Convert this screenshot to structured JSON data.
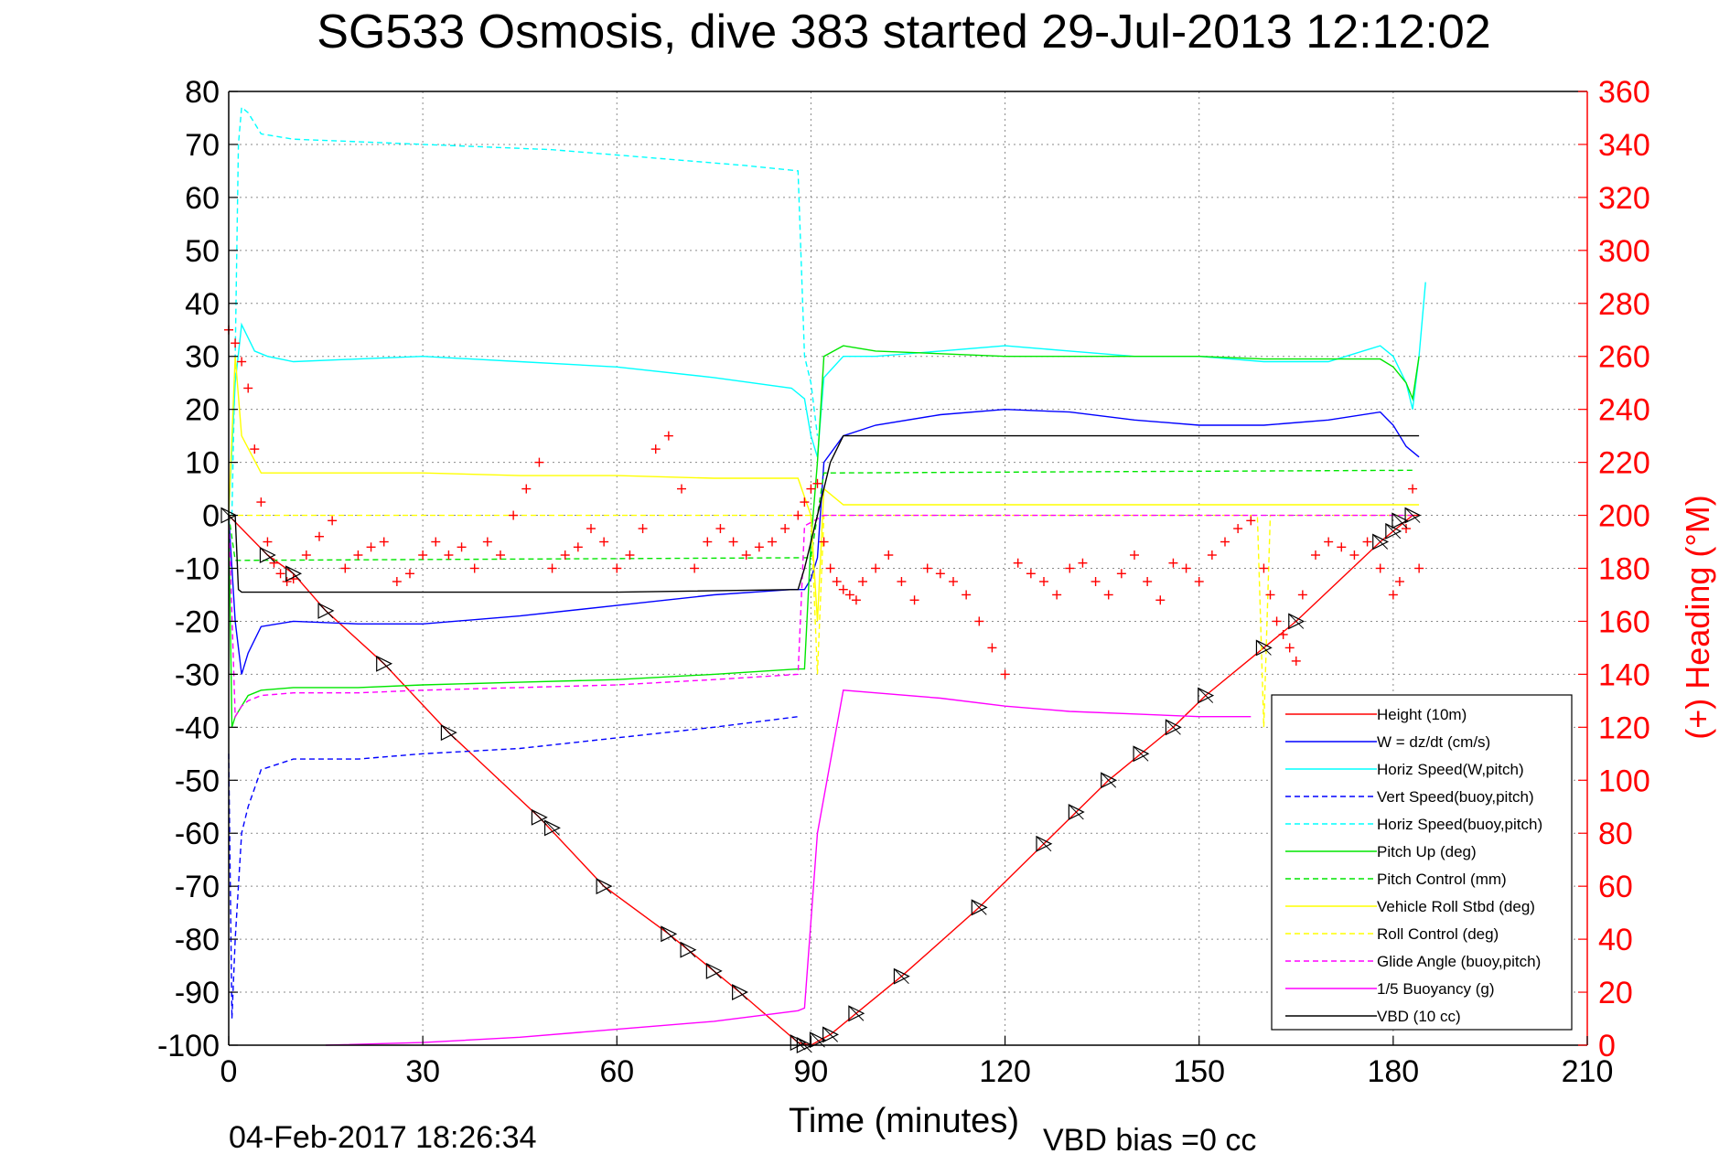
{
  "chart_data": {
    "type": "line",
    "title": "SG533 Osmosis, dive 383 started 29-Jul-2013 12:12:02",
    "xlabel": "Time (minutes)",
    "ylabel": "",
    "y2label": "(+) Heading (°M)",
    "timestamp": "04-Feb-2017 18:26:34",
    "vbd_bias": "VBD bias =0 cc",
    "xlim": [
      0,
      210
    ],
    "ylim": [
      -100,
      80
    ],
    "y2lim": [
      0,
      360
    ],
    "xticks": [
      0,
      30,
      60,
      90,
      120,
      150,
      180,
      210
    ],
    "yticks": [
      -100,
      -90,
      -80,
      -70,
      -60,
      -50,
      -40,
      -30,
      -20,
      -10,
      0,
      10,
      20,
      30,
      40,
      50,
      60,
      70,
      80
    ],
    "y2ticks": [
      0,
      20,
      40,
      60,
      80,
      100,
      120,
      140,
      160,
      180,
      200,
      220,
      240,
      260,
      280,
      300,
      320,
      340,
      360
    ],
    "grid": true,
    "legend_position": "bottom-right",
    "colors": {
      "red": "#ff0000",
      "blue": "#0000ff",
      "cyan": "#00ffff",
      "green": "#00e600",
      "yellow": "#ffff00",
      "magenta": "#ff00ff",
      "black": "#000000"
    },
    "series": [
      {
        "name": "Height (10m)",
        "color": "#ff0000",
        "style": "solid",
        "x": [
          0,
          6,
          10,
          15,
          24,
          34,
          48,
          58,
          68,
          75,
          79,
          88,
          90,
          93,
          97,
          104,
          116,
          126,
          136,
          146,
          151,
          160,
          165,
          178,
          183,
          184
        ],
        "y": [
          0,
          -7.5,
          -11,
          -18,
          -28,
          -41,
          -57,
          -70,
          -79,
          -86,
          -90,
          -99.5,
          -100,
          -98,
          -94,
          -87,
          -74,
          -62,
          -50,
          -40,
          -34,
          -25,
          -20,
          -5,
          0,
          0
        ]
      },
      {
        "name": "W = dz/dt (cm/s)",
        "color": "#0000ff",
        "style": "solid",
        "x": [
          0,
          1,
          2,
          3,
          5,
          10,
          20,
          30,
          45,
          60,
          75,
          87,
          89,
          90,
          91,
          92,
          95,
          100,
          110,
          120,
          130,
          140,
          150,
          160,
          170,
          178,
          180,
          182,
          184
        ],
        "y": [
          0,
          -20,
          -30,
          -26,
          -21,
          -20,
          -20.5,
          -20.5,
          -19,
          -17,
          -15,
          -14,
          -14,
          -12,
          -8,
          10,
          15,
          17,
          19,
          20,
          19.5,
          18,
          17,
          17,
          18,
          19.5,
          17,
          13,
          11
        ]
      },
      {
        "name": "Horiz Speed(W,pitch)",
        "color": "#00ffff",
        "style": "solid",
        "x": [
          0,
          1,
          2,
          4,
          6,
          10,
          20,
          30,
          45,
          60,
          75,
          87,
          89,
          90,
          91,
          92,
          95,
          100,
          110,
          120,
          130,
          140,
          150,
          160,
          170,
          178,
          180,
          182,
          183,
          184,
          185
        ],
        "y": [
          0,
          25,
          36,
          31,
          30,
          29,
          29.5,
          30,
          29,
          28,
          26,
          24,
          22,
          15,
          11,
          26,
          30,
          30,
          31,
          32,
          31,
          30,
          30,
          29,
          29,
          32,
          30,
          25,
          20,
          30,
          44
        ]
      },
      {
        "name": "Vert Speed(buoy,pitch)",
        "color": "#0000ff",
        "style": "dashed",
        "x": [
          0,
          0.5,
          1,
          2,
          3,
          5,
          10,
          20,
          30,
          45,
          60,
          75,
          88
        ],
        "y": [
          -45,
          -95,
          -80,
          -60,
          -55,
          -48,
          -46,
          -46,
          -45,
          -44,
          -42,
          -40,
          -38
        ]
      },
      {
        "name": "Horiz Speed(buoy,pitch)",
        "color": "#00ffff",
        "style": "dashed",
        "x": [
          0.5,
          1,
          1.5,
          2,
          3,
          5,
          10,
          20,
          30,
          40,
          50,
          60,
          70,
          80,
          88,
          89,
          90,
          91
        ],
        "y": [
          0,
          30,
          70,
          77,
          76,
          72,
          71,
          70.5,
          70,
          69.5,
          69,
          68,
          67,
          66,
          65,
          30,
          25,
          15
        ]
      },
      {
        "name": "Pitch Up (deg)",
        "color": "#00e600",
        "style": "solid",
        "x": [
          0,
          0.5,
          1,
          2,
          3,
          5,
          10,
          20,
          30,
          45,
          60,
          75,
          88,
          89,
          90,
          91,
          92,
          95,
          100,
          110,
          120,
          130,
          140,
          150,
          160,
          170,
          178,
          180,
          182,
          183,
          184
        ],
        "y": [
          0,
          -40,
          -38,
          -36,
          -34,
          -33,
          -32.5,
          -32.5,
          -32,
          -31.5,
          -31,
          -30,
          -29,
          -29,
          -5,
          10,
          30,
          32,
          31,
          30.5,
          30,
          30,
          30,
          30,
          29.5,
          29.5,
          29.5,
          28,
          25,
          22,
          30
        ]
      },
      {
        "name": "Pitch Control (mm)",
        "color": "#00e600",
        "style": "dashed",
        "x": [
          0,
          1,
          2,
          90,
          92,
          93,
          183
        ],
        "y": [
          0,
          -8.5,
          -8.5,
          -8,
          8,
          8,
          8.5
        ]
      },
      {
        "name": "Vehicle Roll Stbd (deg)",
        "color": "#ffff00",
        "style": "solid",
        "x": [
          0,
          1,
          2,
          5,
          10,
          20,
          30,
          45,
          60,
          75,
          88,
          90,
          91,
          92,
          95,
          100,
          110,
          120,
          130,
          140,
          150,
          160,
          170,
          180,
          184
        ],
        "y": [
          0,
          30,
          15,
          8,
          8,
          8,
          8,
          7.5,
          7.5,
          7,
          7,
          0,
          -20,
          5,
          2,
          2,
          2,
          2,
          2,
          2,
          2,
          2,
          2,
          2,
          2
        ]
      },
      {
        "name": "Roll Control (deg)",
        "color": "#ffff00",
        "style": "dashed",
        "x": [
          0,
          1,
          90,
          91,
          92,
          159,
          160,
          161,
          183
        ],
        "y": [
          0,
          0,
          0,
          -30,
          0,
          0,
          -40,
          0,
          0
        ]
      },
      {
        "name": "Glide Angle (buoy,pitch)",
        "color": "#ff00ff",
        "style": "dashed",
        "x": [
          0,
          1,
          2,
          3,
          5,
          10,
          20,
          30,
          45,
          60,
          75,
          88,
          89,
          92,
          183
        ],
        "y": [
          0,
          -38,
          -36,
          -35,
          -34,
          -33.5,
          -33.5,
          -33,
          -32.5,
          -32,
          -31,
          -30,
          -2,
          0,
          0
        ]
      },
      {
        "name": "1/5 Buoyancy (g)",
        "color": "#ff00ff",
        "style": "solid",
        "x": [
          15,
          30,
          45,
          60,
          75,
          88,
          89,
          91,
          95,
          100,
          110,
          120,
          130,
          140,
          150,
          158
        ],
        "y": [
          -100,
          -99.5,
          -98.5,
          -97,
          -95.5,
          -93.5,
          -93,
          -60,
          -33,
          -33.5,
          -34.5,
          -36,
          -37,
          -37.5,
          -38,
          -38
        ]
      },
      {
        "name": "VBD (10 cc)",
        "color": "#000000",
        "style": "solid",
        "x": [
          1,
          1.5,
          2,
          30,
          60,
          88,
          89,
          91,
          93,
          95,
          184
        ],
        "y": [
          0,
          -14,
          -14.5,
          -14.5,
          -14.5,
          -14,
          -10,
          0,
          10,
          15,
          15
        ]
      }
    ],
    "heading": {
      "name": "(+) Heading (°M)",
      "color": "#ff0000",
      "marker": "+",
      "axis": "right",
      "x": [
        0,
        1,
        2,
        3,
        4,
        5,
        6,
        7,
        8,
        9,
        10,
        12,
        14,
        16,
        18,
        20,
        22,
        24,
        26,
        28,
        30,
        32,
        34,
        36,
        38,
        40,
        42,
        44,
        46,
        48,
        50,
        52,
        54,
        56,
        58,
        60,
        62,
        64,
        66,
        68,
        70,
        72,
        74,
        76,
        78,
        80,
        82,
        84,
        86,
        88,
        89,
        90,
        91,
        92,
        93,
        94,
        95,
        96,
        97,
        98,
        100,
        102,
        104,
        106,
        108,
        110,
        112,
        114,
        116,
        118,
        120,
        122,
        124,
        126,
        128,
        130,
        132,
        134,
        136,
        138,
        140,
        142,
        144,
        146,
        148,
        150,
        152,
        154,
        156,
        158,
        160,
        161,
        162,
        163,
        164,
        165,
        166,
        168,
        170,
        172,
        174,
        176,
        178,
        180,
        181,
        182,
        183,
        184
      ],
      "y": [
        270,
        265,
        258,
        248,
        225,
        205,
        190,
        182,
        178,
        175,
        176,
        185,
        192,
        198,
        180,
        185,
        188,
        190,
        175,
        178,
        185,
        190,
        185,
        188,
        180,
        190,
        185,
        200,
        210,
        220,
        180,
        185,
        188,
        195,
        190,
        180,
        185,
        195,
        225,
        230,
        210,
        180,
        190,
        195,
        190,
        185,
        188,
        190,
        195,
        200,
        205,
        210,
        212,
        190,
        180,
        175,
        172,
        170,
        168,
        175,
        180,
        185,
        175,
        168,
        180,
        178,
        175,
        170,
        160,
        150,
        140,
        182,
        178,
        175,
        170,
        180,
        182,
        175,
        170,
        178,
        185,
        175,
        168,
        182,
        180,
        175,
        185,
        190,
        195,
        198,
        180,
        170,
        160,
        155,
        150,
        145,
        170,
        185,
        190,
        188,
        185,
        190,
        180,
        170,
        175,
        195,
        210,
        180
      ]
    },
    "markers": {
      "name": "",
      "color": "#000000",
      "x": [
        0,
        6,
        10,
        15,
        24,
        34,
        48,
        50,
        58,
        68,
        71,
        75,
        79,
        88,
        89,
        91,
        93,
        97,
        104,
        116,
        126,
        131,
        136,
        141,
        146,
        151,
        160,
        165,
        178,
        180,
        181,
        183
      ],
      "y": [
        0,
        -7.5,
        -11,
        -18,
        -28,
        -41,
        -57,
        -59,
        -70,
        -79,
        -82,
        -86,
        -90,
        -99.5,
        -100,
        -99,
        -98,
        -94,
        -87,
        -74,
        -62,
        -56,
        -50,
        -45,
        -40,
        -34,
        -25,
        -20,
        -5,
        -3,
        -1,
        0
      ]
    }
  }
}
